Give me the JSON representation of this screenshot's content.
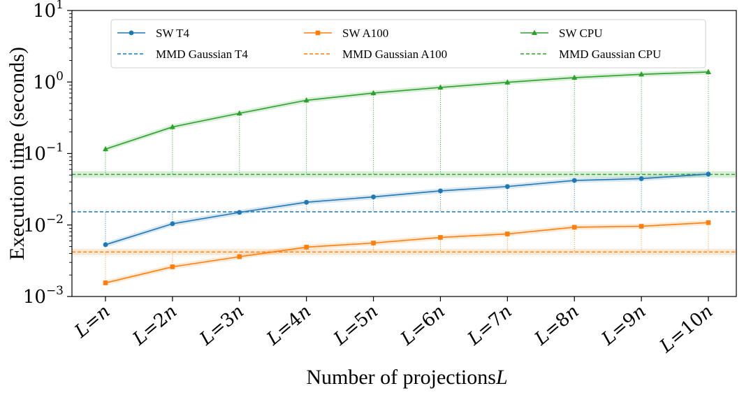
{
  "chart_data": {
    "type": "line",
    "yscale": "log",
    "title": "",
    "xlabel": "Number of projections",
    "xlabel_var": "L",
    "ylabel": "Execution time (seconds)",
    "ylim": [
      0.001,
      10
    ],
    "y_ticks": [
      {
        "base": "10",
        "exp": "1",
        "value": 10
      },
      {
        "base": "10",
        "exp": "0",
        "value": 1
      },
      {
        "base": "10",
        "exp": "−1",
        "value": 0.1
      },
      {
        "base": "10",
        "exp": "−2",
        "value": 0.01
      },
      {
        "base": "10",
        "exp": "−3",
        "value": 0.001
      }
    ],
    "categories": [
      {
        "lhs": "L",
        "eq": "=",
        "rhs": "n"
      },
      {
        "lhs": "L",
        "eq": "=",
        "rhs": "2n"
      },
      {
        "lhs": "L",
        "eq": "=",
        "rhs": "3n"
      },
      {
        "lhs": "L",
        "eq": "=",
        "rhs": "4n"
      },
      {
        "lhs": "L",
        "eq": "=",
        "rhs": "5n"
      },
      {
        "lhs": "L",
        "eq": "=",
        "rhs": "6n"
      },
      {
        "lhs": "L",
        "eq": "=",
        "rhs": "7n"
      },
      {
        "lhs": "L",
        "eq": "=",
        "rhs": "8n"
      },
      {
        "lhs": "L",
        "eq": "=",
        "rhs": "9n"
      },
      {
        "lhs": "L",
        "eq": "=",
        "rhs": "10n"
      }
    ],
    "series": [
      {
        "name": "SW T4",
        "color": "#1f77b4",
        "marker": "circle",
        "values": [
          0.0053,
          0.0104,
          0.015,
          0.0208,
          0.0247,
          0.03,
          0.0345,
          0.042,
          0.0445,
          0.0515
        ]
      },
      {
        "name": "SW A100",
        "color": "#ff7f0e",
        "marker": "square",
        "values": [
          0.00155,
          0.0026,
          0.0036,
          0.0049,
          0.0056,
          0.0067,
          0.0075,
          0.0093,
          0.0096,
          0.0108
        ]
      },
      {
        "name": "SW CPU",
        "color": "#2ca02c",
        "marker": "triangle",
        "values": [
          0.115,
          0.235,
          0.365,
          0.555,
          0.7,
          0.84,
          0.99,
          1.15,
          1.28,
          1.38
        ]
      }
    ],
    "baselines": [
      {
        "name": "MMD Gaussian T4",
        "color": "#1f77b4",
        "value": 0.0153
      },
      {
        "name": "MMD Gaussian A100",
        "color": "#ff7f0e",
        "value": 0.0042
      },
      {
        "name": "MMD Gaussian CPU",
        "color": "#2ca02c",
        "value": 0.051
      }
    ],
    "legend": {
      "placement": "top-center",
      "columns": 3,
      "entries": [
        "SW T4",
        "SW A100",
        "SW CPU",
        "MMD Gaussian T4",
        "MMD Gaussian A100",
        "MMD Gaussian CPU"
      ]
    },
    "grid": false
  }
}
